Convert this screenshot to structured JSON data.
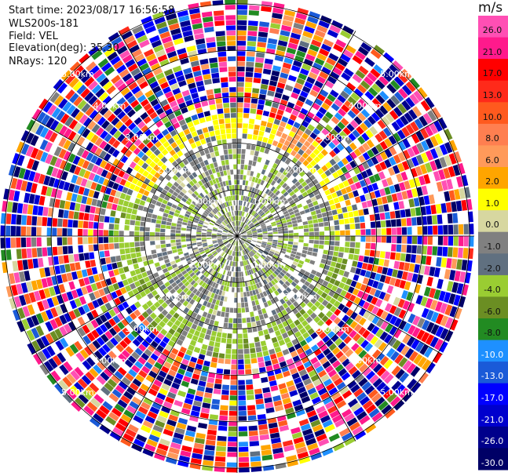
{
  "header": {
    "start_time": "Start time: 2023/08/17 16:56:58",
    "instrument": "WLS200s-181",
    "field": "Field: VEL",
    "elevation": "Elevation(deg): 35.30",
    "nrays": "NRays: 120"
  },
  "chart_data": {
    "type": "heatmap",
    "projection": "polar-ppi",
    "field": "VEL",
    "units": "m/s",
    "n_rays": 120,
    "elevation_deg": 35.3,
    "range_rings_km": [
      1.0,
      2.0,
      3.0,
      4.0,
      5.0
    ],
    "ring_labels": [
      "1.00km",
      "2.00km",
      "3.00km",
      "4.00km",
      "5.00km"
    ],
    "max_range_km": 5.1,
    "colorbar": {
      "label": "m/s",
      "ticks": [
        "26.0",
        "21.0",
        "17.0",
        "13.0",
        "10.0",
        "8.0",
        "6.0",
        "2.0",
        "1.0",
        "0.0",
        "-1.0",
        "-2.0",
        "-4.0",
        "-6.0",
        "-8.0",
        "-10.0",
        "-13.0",
        "-17.0",
        "-21.0",
        "-26.0",
        "-30.0"
      ],
      "bins": [
        {
          "from": 26,
          "to": 30,
          "color": "#ff4fb4"
        },
        {
          "from": 21,
          "to": 26,
          "color": "#ff1a8c"
        },
        {
          "from": 17,
          "to": 21,
          "color": "#ff0000"
        },
        {
          "from": 13,
          "to": 17,
          "color": "#ff2a1a"
        },
        {
          "from": 10,
          "to": 13,
          "color": "#ff5a1e"
        },
        {
          "from": 8,
          "to": 10,
          "color": "#ff7f50"
        },
        {
          "from": 6,
          "to": 8,
          "color": "#ff9a5a"
        },
        {
          "from": 2,
          "to": 6,
          "color": "#ffa500"
        },
        {
          "from": 1,
          "to": 2,
          "color": "#ffff00"
        },
        {
          "from": 0,
          "to": 1,
          "color": "#d7d7a0"
        },
        {
          "from": -1,
          "to": 0,
          "color": "#808080"
        },
        {
          "from": -2,
          "to": -1,
          "color": "#607080"
        },
        {
          "from": -4,
          "to": -2,
          "color": "#9acd32"
        },
        {
          "from": -6,
          "to": -4,
          "color": "#6b8e23"
        },
        {
          "from": -8,
          "to": -6,
          "color": "#228b22"
        },
        {
          "from": -10,
          "to": -8,
          "color": "#1e90ff"
        },
        {
          "from": -13,
          "to": -10,
          "color": "#1a5ad8"
        },
        {
          "from": -17,
          "to": -13,
          "color": "#0000ff"
        },
        {
          "from": -21,
          "to": -17,
          "color": "#0000cd"
        },
        {
          "from": -26,
          "to": -21,
          "color": "#00008b"
        },
        {
          "from": -30,
          "to": -26,
          "color": "#000066"
        }
      ]
    }
  }
}
